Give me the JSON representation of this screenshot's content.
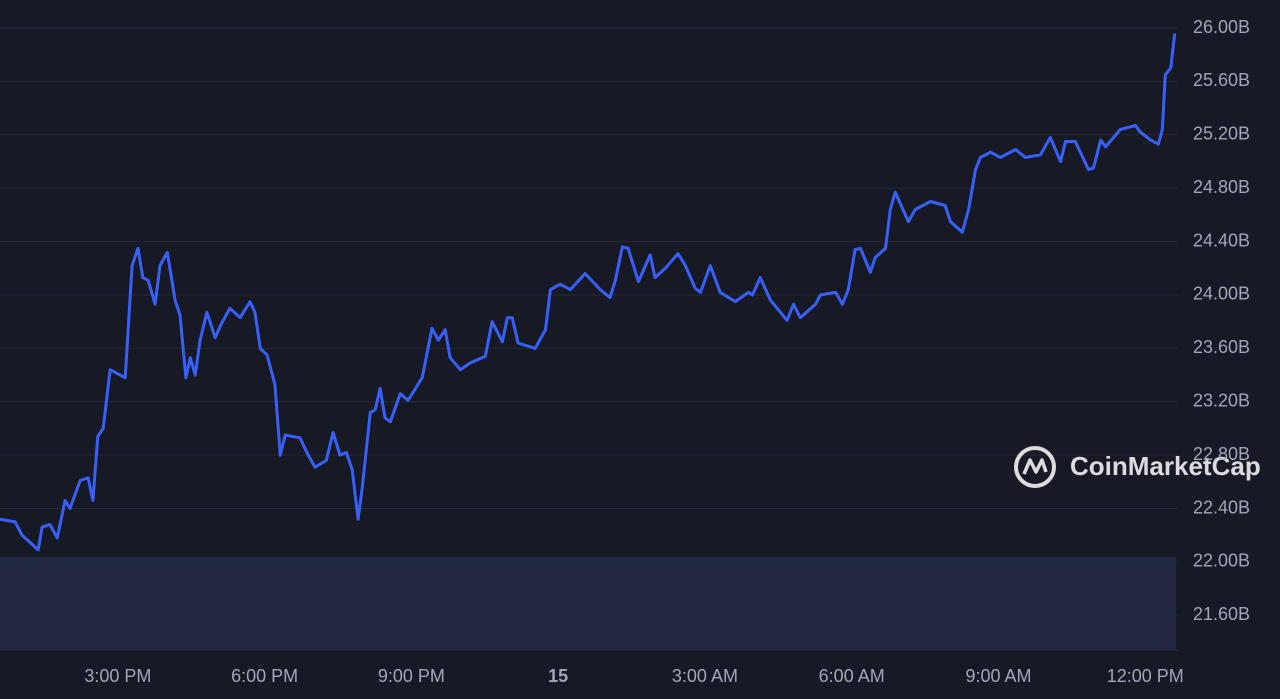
{
  "chart_data": {
    "type": "line",
    "watermark": "CoinMarketCap",
    "color": "#3861fb",
    "grid": true,
    "x": [
      12.59,
      12.9,
      13.04,
      13.37,
      13.45,
      13.61,
      13.76,
      13.92,
      14.02,
      14.23,
      14.39,
      14.49,
      14.59,
      14.7,
      14.84,
      15.15,
      15.29,
      15.41,
      15.51,
      15.62,
      15.76,
      15.86,
      16.01,
      16.17,
      16.27,
      16.39,
      16.48,
      16.58,
      16.68,
      16.82,
      16.99,
      17.11,
      17.29,
      17.5,
      17.7,
      17.8,
      17.91,
      18.05,
      18.21,
      18.32,
      18.42,
      18.72,
      18.89,
      19.03,
      19.26,
      19.4,
      19.54,
      19.67,
      19.79,
      19.91,
      19.99,
      20.16,
      20.26,
      20.36,
      20.46,
      20.57,
      20.77,
      20.93,
      21.22,
      21.42,
      21.55,
      21.69,
      21.79,
      22.0,
      22.2,
      22.51,
      22.65,
      22.86,
      22.96,
      23.06,
      23.18,
      23.53,
      23.74,
      23.84,
      24.04,
      24.25,
      24.55,
      24.86,
      25.06,
      25.17,
      25.31,
      25.43,
      25.64,
      25.88,
      25.98,
      26.19,
      26.45,
      26.6,
      26.8,
      26.91,
      27.11,
      27.31,
      27.62,
      27.89,
      27.97,
      28.13,
      28.34,
      28.68,
      28.81,
      28.95,
      29.26,
      29.36,
      29.67,
      29.81,
      29.93,
      30.07,
      30.18,
      30.38,
      30.48,
      30.69,
      30.79,
      30.89,
      31.16,
      31.3,
      31.61,
      31.91,
      32.02,
      32.26,
      32.39,
      32.53,
      32.63,
      32.84,
      33.04,
      33.35,
      33.55,
      33.86,
      34.06,
      34.27,
      34.37,
      34.57,
      34.84,
      34.94,
      35.09,
      35.19,
      35.49,
      35.8,
      35.9,
      36.11,
      36.27,
      36.35,
      36.41,
      36.52,
      36.6
    ],
    "values": [
      22.32,
      22.3,
      22.2,
      22.09,
      22.26,
      22.28,
      22.18,
      22.46,
      22.4,
      22.61,
      22.63,
      22.46,
      22.94,
      23.0,
      23.44,
      23.38,
      24.22,
      24.35,
      24.13,
      24.11,
      23.93,
      24.22,
      24.32,
      23.96,
      23.85,
      23.38,
      23.53,
      23.4,
      23.66,
      23.87,
      23.68,
      23.78,
      23.9,
      23.83,
      23.95,
      23.87,
      23.6,
      23.55,
      23.33,
      22.8,
      22.95,
      22.93,
      22.8,
      22.71,
      22.76,
      22.97,
      22.8,
      22.82,
      22.69,
      22.32,
      22.54,
      23.12,
      23.14,
      23.3,
      23.08,
      23.05,
      23.26,
      23.21,
      23.38,
      23.75,
      23.66,
      23.74,
      23.53,
      23.44,
      23.49,
      23.54,
      23.8,
      23.65,
      23.83,
      23.83,
      23.64,
      23.6,
      23.74,
      24.04,
      24.08,
      24.04,
      24.16,
      24.04,
      23.98,
      24.11,
      24.36,
      24.35,
      24.1,
      24.3,
      24.13,
      24.2,
      24.31,
      24.22,
      24.05,
      24.02,
      24.22,
      24.02,
      23.95,
      24.02,
      24.0,
      24.13,
      23.96,
      23.81,
      23.93,
      23.83,
      23.93,
      24.0,
      24.02,
      23.93,
      24.04,
      24.34,
      24.35,
      24.17,
      24.28,
      24.35,
      24.64,
      24.77,
      24.55,
      24.64,
      24.7,
      24.67,
      24.55,
      24.47,
      24.64,
      24.94,
      25.03,
      25.07,
      25.03,
      25.09,
      25.03,
      25.05,
      25.18,
      25.0,
      25.15,
      25.15,
      24.94,
      24.95,
      25.16,
      25.11,
      25.24,
      25.27,
      25.22,
      25.16,
      25.13,
      25.24,
      25.65,
      25.7,
      25.95
    ],
    "xlim": [
      12.59,
      36.67
    ],
    "xticks": [
      {
        "value": 15,
        "label": "3:00 PM"
      },
      {
        "value": 18,
        "label": "6:00 PM"
      },
      {
        "value": 21,
        "label": "9:00 PM"
      },
      {
        "value": 24,
        "label": "15"
      },
      {
        "value": 27,
        "label": "3:00 AM"
      },
      {
        "value": 30,
        "label": "6:00 AM"
      },
      {
        "value": 33,
        "label": "9:00 AM"
      },
      {
        "value": 36,
        "label": "12:00 PM"
      }
    ],
    "ylim": [
      21.34,
      26.21
    ],
    "yticks": [
      {
        "value": 21.6,
        "label": "21.60B"
      },
      {
        "value": 22,
        "label": "22.00B"
      },
      {
        "value": 22.4,
        "label": "22.40B"
      },
      {
        "value": 22.8,
        "label": "22.80B"
      },
      {
        "value": 23.2,
        "label": "23.20B"
      },
      {
        "value": 23.6,
        "label": "23.60B"
      },
      {
        "value": 24,
        "label": "24.00B"
      },
      {
        "value": 24.4,
        "label": "24.40B"
      },
      {
        "value": 24.8,
        "label": "24.80B"
      },
      {
        "value": 25.2,
        "label": "25.20B"
      },
      {
        "value": 25.6,
        "label": "25.60B"
      },
      {
        "value": 26,
        "label": "26.00B"
      }
    ]
  }
}
